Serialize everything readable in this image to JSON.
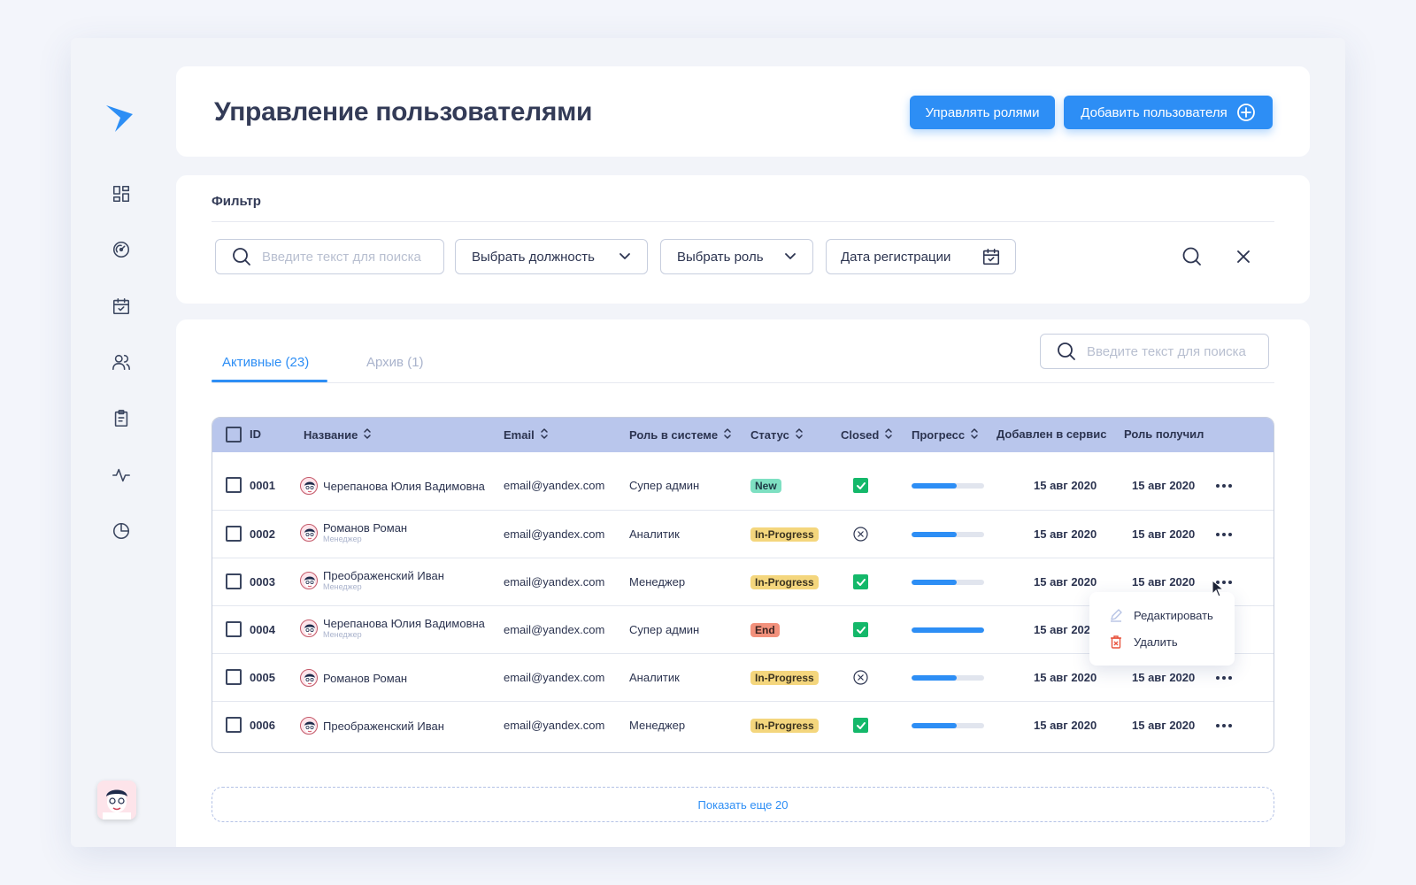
{
  "header": {
    "title": "Управление пользователями",
    "manage_roles_label": "Управлять ролями",
    "add_user_label": "Добавить пользователя"
  },
  "sidebar": {
    "items": [
      {
        "icon": "dashboard-icon"
      },
      {
        "icon": "speedometer-icon"
      },
      {
        "icon": "calendar-check-icon"
      },
      {
        "icon": "users-icon"
      },
      {
        "icon": "clipboard-icon"
      },
      {
        "icon": "activity-icon"
      },
      {
        "icon": "pie-chart-icon"
      }
    ]
  },
  "filter": {
    "title": "Фильтр",
    "search_placeholder": "Введите текст для поиска",
    "position_label": "Выбрать должность",
    "role_label": "Выбрать роль",
    "date_label": "Дата регистрации"
  },
  "tabs": {
    "active_label": "Активные (23)",
    "archive_label": "Архив (1)",
    "search_placeholder": "Введите текст для поиска"
  },
  "table": {
    "columns": {
      "id": "ID",
      "name": "Название",
      "email": "Email",
      "role": "Роль в системе",
      "status": "Статус",
      "closed": "Closed",
      "progress": "Прогресс",
      "added": "Добавлен в сервис",
      "role_received": "Роль получил"
    },
    "rows": [
      {
        "id": "0001",
        "name": "Черепанова Юлия Вадимовна",
        "sub": "",
        "email": "email@yandex.com",
        "role": "Супер админ",
        "status": "New",
        "closed": true,
        "progress": 0.62,
        "added": "15 авг 2020",
        "role_received": "15 авг 2020"
      },
      {
        "id": "0002",
        "name": "Романов Роман",
        "sub": "Менеджер",
        "email": "email@yandex.com",
        "role": "Аналитик",
        "status": "In-Progress",
        "closed": false,
        "progress": 0.62,
        "added": "15 авг 2020",
        "role_received": "15 авг 2020"
      },
      {
        "id": "0003",
        "name": "Преображенский Иван",
        "sub": "Менеджер",
        "email": "email@yandex.com",
        "role": "Менеджер",
        "status": "In-Progress",
        "closed": true,
        "progress": 0.62,
        "added": "15 авг 2020",
        "role_received": "15 авг 2020"
      },
      {
        "id": "0004",
        "name": "Черепанова Юлия Вадимовна",
        "sub": "Менеджер",
        "email": "email@yandex.com",
        "role": "Супер админ",
        "status": "End",
        "closed": true,
        "progress": 1.0,
        "added": "15 авг 2020",
        "role_received": ""
      },
      {
        "id": "0005",
        "name": "Романов Роман",
        "sub": "",
        "email": "email@yandex.com",
        "role": "Аналитик",
        "status": "In-Progress",
        "closed": false,
        "progress": 0.62,
        "added": "15 авг 2020",
        "role_received": "15 авг 2020"
      },
      {
        "id": "0006",
        "name": "Преображенский Иван",
        "sub": "",
        "email": "email@yandex.com",
        "role": "Менеджер",
        "status": "In-Progress",
        "closed": true,
        "progress": 0.62,
        "added": "15 авг 2020",
        "role_received": "15 авг 2020"
      }
    ]
  },
  "context_menu": {
    "edit_label": "Редактировать",
    "delete_label": "Удалить"
  },
  "show_more_label": "Показать еще 20",
  "colors": {
    "accent": "#2d8ef5",
    "header_bg": "#b9c6ec",
    "new": "#7ee0c2",
    "in_progress": "#f4d67d",
    "end": "#f2917c",
    "closed_check": "#14b86a"
  }
}
